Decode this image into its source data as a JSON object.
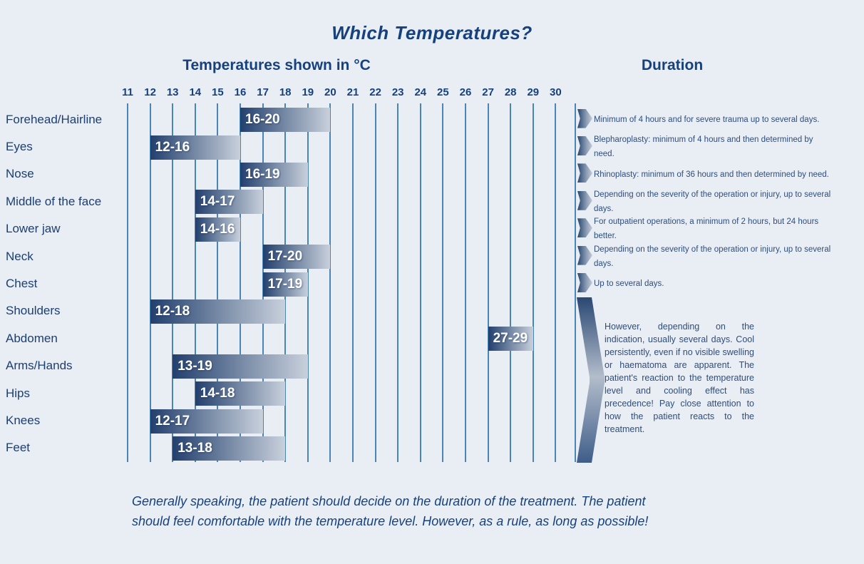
{
  "title": "Which Temperatures?",
  "section_headers": {
    "temperatures": "Temperatures shown in °C",
    "duration": "Duration"
  },
  "chart_data": {
    "type": "bar",
    "subtype": "horizontal-temperature-range-chart",
    "title": "Which Temperatures?",
    "xlabel": "Temperatures shown in °C",
    "axis": {
      "min": 11,
      "max": 30,
      "tick_labels": [
        "11",
        "12",
        "13",
        "14",
        "15",
        "16",
        "17",
        "18",
        "19",
        "20",
        "21",
        "22",
        "23",
        "24",
        "25",
        "26",
        "27",
        "28",
        "29",
        "30"
      ],
      "grid": "vertical-lines"
    },
    "rows": [
      {
        "label": "Forehead/Hairline",
        "start": 16,
        "end": 20,
        "bar_label": "16-20",
        "duration_lines": [
          "Minimum of 4 hours and for severe trauma up to several days."
        ]
      },
      {
        "label": "Eyes",
        "start": 12,
        "end": 16,
        "bar_label": "12-16",
        "duration_lines": [
          "Blepharoplasty: minimum of 4 hours and then determined by",
          "need."
        ]
      },
      {
        "label": "Nose",
        "start": 16,
        "end": 19,
        "bar_label": "16-19",
        "duration_lines": [
          "Rhinoplasty: minimum of 36 hours and then determined by need."
        ]
      },
      {
        "label": "Middle of the face",
        "start": 14,
        "end": 17,
        "bar_label": "14-17",
        "duration_lines": [
          "Depending on the severity of the operation or injury, up to several",
          "days."
        ]
      },
      {
        "label": "Lower jaw",
        "start": 14,
        "end": 16,
        "bar_label": "14-16",
        "duration_lines": [
          "For outpatient operations, a minimum of 2 hours, but 24 hours",
          "better."
        ]
      },
      {
        "label": "Neck",
        "start": 17,
        "end": 20,
        "bar_label": "17-20",
        "duration_lines": [
          "Depending on the severity of the operation or injury, up to several",
          "days."
        ]
      },
      {
        "label": "Chest",
        "start": 17,
        "end": 19,
        "bar_label": "17-19",
        "duration_lines": [
          "Up to several days."
        ]
      },
      {
        "label": "Shoulders",
        "start": 12,
        "end": 18,
        "bar_label": "12-18",
        "duration_lines": null
      },
      {
        "label": "Abdomen",
        "start": 27,
        "end": 29,
        "bar_label": "27-29",
        "duration_lines": null
      },
      {
        "label": "Arms/Hands",
        "start": 13,
        "end": 19,
        "bar_label": "13-19",
        "duration_lines": null
      },
      {
        "label": "Hips",
        "start": 14,
        "end": 18,
        "bar_label": "14-18",
        "duration_lines": null
      },
      {
        "label": "Knees",
        "start": 12,
        "end": 17,
        "bar_label": "12-17",
        "duration_lines": null
      },
      {
        "label": "Feet",
        "start": 13,
        "end": 18,
        "bar_label": "13-18",
        "duration_lines": null
      }
    ],
    "group_duration": {
      "applies_to": [
        "Shoulders",
        "Abdomen",
        "Arms/Hands",
        "Hips",
        "Knees",
        "Feet"
      ],
      "text": "However, depending on the indication, usually several days. Cool persistently, even if no visible swelling or haematoma are apparent. The patient's reaction to the temperature level and cooling effect has precedence! Pay close attention to how the patient reacts to the treatment."
    }
  },
  "footer_lines": [
    "Generally speaking, the patient should decide on the duration of the treatment. The patient",
    "should feel comfortable with the temperature level. However, as a rule, as long as possible!"
  ],
  "colors": {
    "background": "#e9eef5",
    "grid_line": "#4a85b5",
    "bar_gradient_dark": "#223f6d",
    "bar_gradient_light": "#c8d0dc",
    "text_navy": "#16417e",
    "bar_label_text": "#ffffff"
  }
}
